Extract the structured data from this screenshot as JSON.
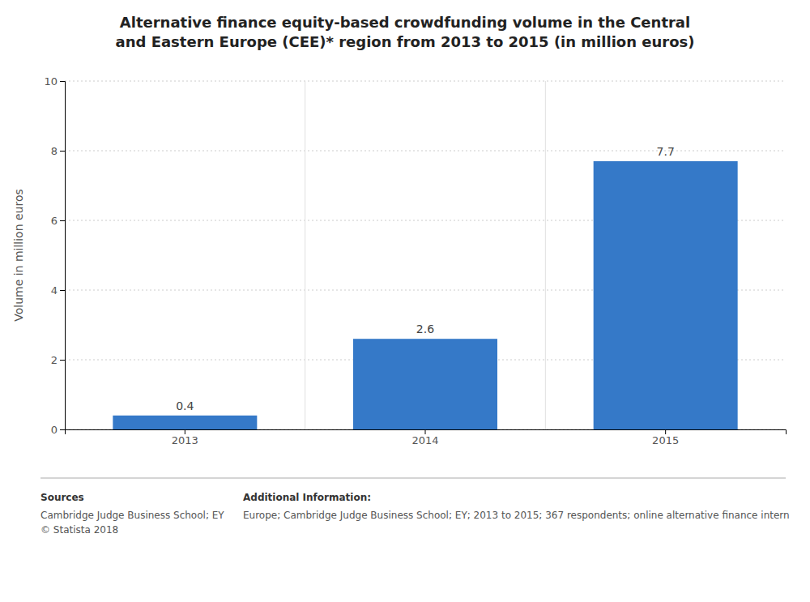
{
  "chart_data": {
    "type": "bar",
    "title": "Alternative finance equity-based crowdfunding volume in the Central\nand Eastern Europe (CEE)* region from 2013 to 2015 (in million euros)",
    "categories": [
      "2013",
      "2014",
      "2015"
    ],
    "values": [
      0.4,
      2.6,
      7.7
    ],
    "color": "#3579c8",
    "ylim": [
      0,
      10
    ],
    "yticks": [
      0,
      2,
      4,
      6,
      8,
      10
    ],
    "ylabel": "Volume in million euros",
    "grid": true,
    "data_labels": true,
    "annotations": [
      "Sources",
      "Cambridge Judge Business School; EY\n© Statista 2018",
      "Additional Information:",
      "Europe; Cambridge Judge Business School; EY; 2013 to 2015; 367 respondents; online alternative finance intern"
    ]
  }
}
